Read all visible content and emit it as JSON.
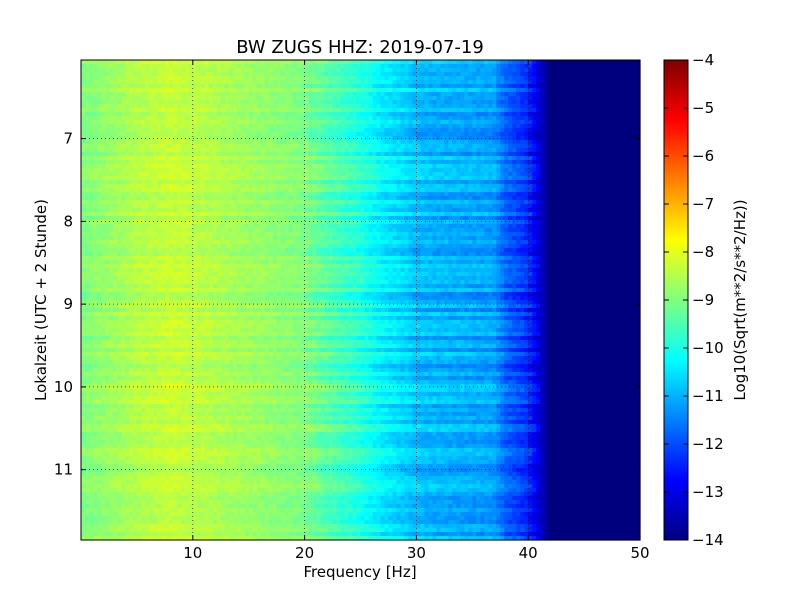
{
  "chart_data": {
    "type": "heatmap",
    "title": "BW ZUGS HHZ: 2019-07-19",
    "xlabel": "Frequency [Hz]",
    "ylabel": "Lokalzeit (UTC + 2 Stunde)",
    "xlim": [
      0,
      50
    ],
    "ylim": [
      11.85,
      6.05
    ],
    "y_inverted": true,
    "xticks": [
      10,
      20,
      30,
      40,
      50
    ],
    "xtick_labels": [
      "10",
      "20",
      "30",
      "40",
      "50"
    ],
    "yticks": [
      7,
      8,
      9,
      10,
      11
    ],
    "ytick_labels": [
      "7",
      "8",
      "9",
      "10",
      "11"
    ],
    "grid": true,
    "colormap": "jet",
    "colorbar": {
      "label": "Log10(Sqrt(m**2/s**2/Hz))",
      "vmin": -14,
      "vmax": -4,
      "ticks": [
        -4,
        -5,
        -6,
        -7,
        -8,
        -9,
        -10,
        -11,
        -12,
        -13,
        -14
      ],
      "tick_labels": [
        "−4",
        "−5",
        "−6",
        "−7",
        "−8",
        "−9",
        "−10",
        "−11",
        "−12",
        "−13",
        "−14"
      ]
    },
    "level_profile": {
      "frequency_hz": [
        0,
        5,
        8,
        10,
        15,
        20,
        22,
        25,
        27,
        29,
        30,
        32,
        35,
        37,
        38,
        40,
        42,
        50
      ],
      "log10_amplitude": [
        -9.0,
        -8.5,
        -8.3,
        -8.4,
        -8.7,
        -9.0,
        -9.4,
        -9.9,
        -10.4,
        -10.7,
        -10.9,
        -11.0,
        -11.1,
        -11.2,
        -11.8,
        -12.3,
        -14.0,
        -14.0
      ]
    }
  }
}
